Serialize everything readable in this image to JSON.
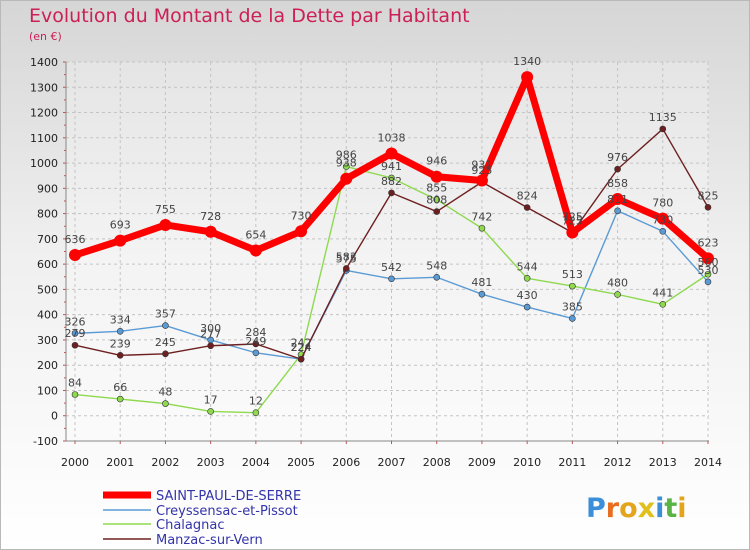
{
  "chart_data": {
    "type": "line",
    "title": "Evolution du Montant de la Dette par Habitant",
    "unit": "(en €)",
    "x": [
      "2000",
      "2001",
      "2002",
      "2003",
      "2004",
      "2005",
      "2006",
      "2007",
      "2008",
      "2009",
      "2010",
      "2011",
      "2012",
      "2013",
      "2014"
    ],
    "yticks": [
      "1400",
      "1300",
      "1200",
      "1100",
      "1000",
      "900",
      "800",
      "700",
      "600",
      "500",
      "400",
      "300",
      "200",
      "100",
      "0",
      "-100"
    ],
    "ylim": [
      -100,
      1400
    ],
    "grid": true,
    "legend_position": "bottom-left",
    "series": [
      {
        "name": "SAINT-PAUL-DE-SERRE",
        "color": "#ff0000",
        "values": [
          636,
          693,
          755,
          728,
          654,
          730,
          938,
          1038,
          946,
          931,
          1340,
          725,
          858,
          780,
          623
        ],
        "labels": [
          "636",
          "693",
          "755",
          "728",
          "654",
          "730",
          "938",
          "1038",
          "946",
          "931",
          "1340",
          "725",
          "858",
          "780",
          "623"
        ]
      },
      {
        "name": "Creyssensac-et-Pissot",
        "color": "#5b9bd5",
        "values": [
          326,
          334,
          357,
          300,
          249,
          224,
          575,
          542,
          548,
          481,
          430,
          385,
          811,
          730,
          530
        ],
        "labels": [
          "326",
          "334",
          "357",
          "300",
          "249",
          "224",
          "575",
          "542",
          "548",
          "481",
          "430",
          "385",
          "811",
          "730",
          "530"
        ]
      },
      {
        "name": "Chalagnac",
        "color": "#8fd94f",
        "values": [
          84,
          66,
          48,
          17,
          12,
          242,
          986,
          941,
          855,
          742,
          544,
          513,
          480,
          441,
          560
        ],
        "labels": [
          "84",
          "66",
          "48",
          "17",
          "12",
          "242",
          "986",
          "941",
          "855",
          "742",
          "544",
          "513",
          "480",
          "441",
          "560"
        ]
      },
      {
        "name": "Manzac-sur-Vern",
        "color": "#6e2021",
        "values": [
          279,
          239,
          245,
          277,
          284,
          224,
          583,
          882,
          808,
          925,
          824,
          725,
          976,
          1135,
          825
        ],
        "labels": [
          "279",
          "239",
          "245",
          "277",
          "284",
          "224",
          "583",
          "882",
          "808",
          "925",
          "824",
          "725",
          "976",
          "1135",
          "825"
        ]
      }
    ]
  },
  "branding": {
    "letters": [
      "P",
      "r",
      "o",
      "x",
      "i",
      "t",
      "i"
    ],
    "colors": [
      "#3a8fd8",
      "#e86d1f",
      "#e2a51c",
      "#e2c01c",
      "#3a8fd8",
      "#58b444",
      "#e2a51c"
    ]
  }
}
